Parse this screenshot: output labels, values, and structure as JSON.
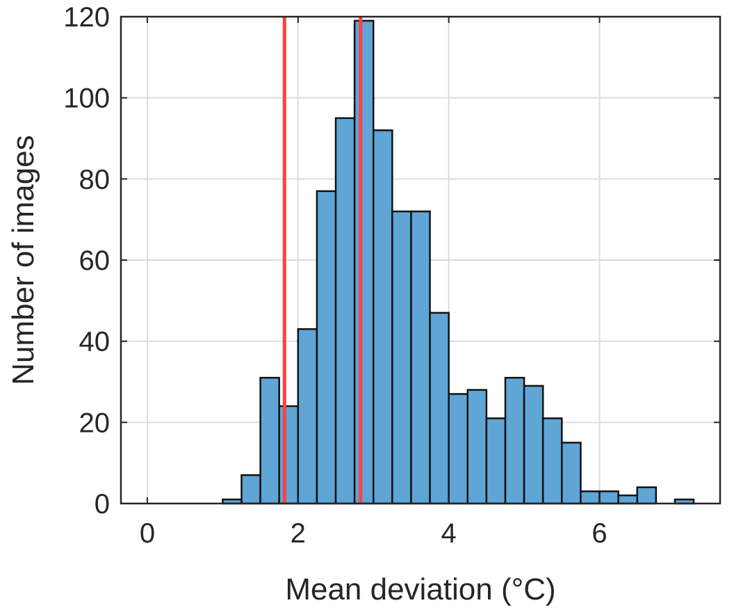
{
  "chart_data": {
    "type": "bar",
    "title": "",
    "xlabel": "Mean deviation (°C)",
    "ylabel": "Number of images",
    "xlim": [
      -0.35,
      7.6
    ],
    "ylim": [
      0,
      120
    ],
    "xticks": [
      0,
      2,
      4,
      6
    ],
    "xtick_labels": [
      "0",
      "2",
      "4",
      "6"
    ],
    "yticks": [
      0,
      20,
      40,
      60,
      80,
      100,
      120
    ],
    "ytick_labels": [
      "0",
      "20",
      "40",
      "60",
      "80",
      "100",
      "120"
    ],
    "grid": true,
    "bin_width": 0.25,
    "bin_edges": [
      1.0,
      1.25,
      1.5,
      1.75,
      2.0,
      2.25,
      2.5,
      2.75,
      3.0,
      3.25,
      3.5,
      3.75,
      4.0,
      4.25,
      4.5,
      4.75,
      5.0,
      5.25,
      5.5,
      5.75,
      6.0,
      6.25,
      6.5,
      6.75,
      7.0,
      7.25
    ],
    "counts": [
      1,
      7,
      31,
      24,
      43,
      77,
      95,
      119,
      92,
      72,
      72,
      47,
      27,
      28,
      21,
      31,
      29,
      21,
      15,
      3,
      3,
      2,
      4,
      0,
      1
    ],
    "bar_color": "#5fa5d6",
    "edge_color": "#111111",
    "reference_lines": [
      {
        "x": 1.82,
        "color": "#ff4040"
      },
      {
        "x": 2.83,
        "color": "#ff4040"
      }
    ]
  }
}
